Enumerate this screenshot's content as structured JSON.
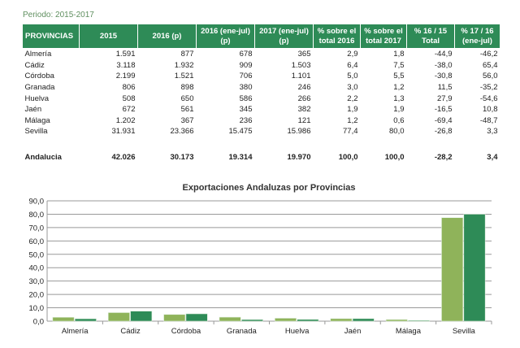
{
  "period": "Periodo: 2015-2017",
  "table": {
    "headers": [
      [
        "PROVINCIAS"
      ],
      [
        "2015"
      ],
      [
        "2016 (p)"
      ],
      [
        "2016 (ene-jul)",
        "(p)"
      ],
      [
        "2017 (ene-jul)",
        "(p)"
      ],
      [
        "% sobre el",
        "total 2016"
      ],
      [
        "% sobre el",
        "total 2017"
      ],
      [
        "% 16 / 15",
        "Total"
      ],
      [
        "% 17 / 16",
        "(ene-jul)"
      ]
    ],
    "rows": [
      [
        "Almería",
        "1.591",
        "877",
        "678",
        "365",
        "2,9",
        "1,8",
        "-44,9",
        "-46,2"
      ],
      [
        "Cádiz",
        "3.118",
        "1.932",
        "909",
        "1.503",
        "6,4",
        "7,5",
        "-38,0",
        "65,4"
      ],
      [
        "Córdoba",
        "2.199",
        "1.521",
        "706",
        "1.101",
        "5,0",
        "5,5",
        "-30,8",
        "56,0"
      ],
      [
        "Granada",
        "806",
        "898",
        "380",
        "246",
        "3,0",
        "1,2",
        "11,5",
        "-35,2"
      ],
      [
        "Huelva",
        "508",
        "650",
        "586",
        "266",
        "2,2",
        "1,3",
        "27,9",
        "-54,6"
      ],
      [
        "Jaén",
        "672",
        "561",
        "345",
        "382",
        "1,9",
        "1,9",
        "-16,5",
        "10,8"
      ],
      [
        "Málaga",
        "1.202",
        "367",
        "236",
        "121",
        "1,2",
        "0,6",
        "-69,4",
        "-48,7"
      ],
      [
        "Sevilla",
        "31.931",
        "23.366",
        "15.475",
        "15.986",
        "77,4",
        "80,0",
        "-26,8",
        "3,3"
      ]
    ],
    "total": [
      "Andalucia",
      "42.026",
      "30.173",
      "19.314",
      "19.970",
      "100,0",
      "100,0",
      "-28,2",
      "3,4"
    ]
  },
  "colors": {
    "header": "#2e8b57",
    "series2016": "#8fb35a",
    "series2017": "#2e8b57"
  },
  "chart_data": {
    "type": "bar",
    "title": "Exportaciones Andaluzas por Provincias",
    "categories": [
      "Almería",
      "Cádiz",
      "Córdoba",
      "Granada",
      "Huelva",
      "Jaén",
      "Málaga",
      "Sevilla"
    ],
    "series": [
      {
        "name": "% sobre el total 2016",
        "values": [
          2.9,
          6.4,
          5.0,
          3.0,
          2.2,
          1.9,
          1.2,
          77.4
        ]
      },
      {
        "name": "% sobre el total 2017",
        "values": [
          1.8,
          7.5,
          5.5,
          1.2,
          1.3,
          1.9,
          0.6,
          80.0
        ]
      }
    ],
    "yticks": [
      "0,0",
      "10,0",
      "20,0",
      "30,0",
      "40,0",
      "50,0",
      "60,0",
      "70,0",
      "80,0",
      "90,0"
    ],
    "ylim": [
      0,
      90
    ],
    "grid": true,
    "legend": "none"
  }
}
